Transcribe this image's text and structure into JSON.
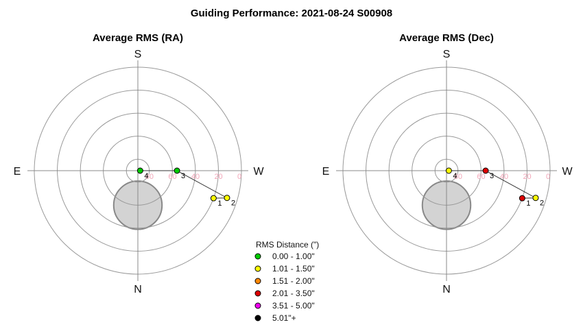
{
  "page": {
    "title": "Guiding Performance: 2021-08-24 S00908"
  },
  "legend": {
    "title": "RMS Distance (\")",
    "items": [
      {
        "label": "0.00 - 1.00\"",
        "color": "#00cc00"
      },
      {
        "label": "1.01 - 1.50\"",
        "color": "#ffff00"
      },
      {
        "label": "1.51 - 2.00\"",
        "color": "#ff8800"
      },
      {
        "label": "2.01 - 3.50\"",
        "color": "#dd0000"
      },
      {
        "label": "3.51 - 5.00\"",
        "color": "#ee00ee"
      },
      {
        "label": "5.01\"+",
        "color": "#000000"
      }
    ]
  },
  "chart_data": [
    {
      "type": "scatter",
      "subtype": "polar-sky",
      "title": "Average RMS (RA)",
      "cardinals": {
        "top": "S",
        "bottom": "N",
        "left": "E",
        "right": "W"
      },
      "altitude_rings": [
        80,
        60,
        40,
        20,
        0
      ],
      "ring_labels": [
        "80",
        "60",
        "40",
        "20",
        "0"
      ],
      "excluded_region": {
        "azimuth": 0,
        "altitude": 60,
        "radius_deg": 21
      },
      "points": [
        {
          "label": "1",
          "azimuth": 290,
          "altitude": 20,
          "color": "#ffff00"
        },
        {
          "label": "2",
          "azimuth": 287,
          "altitude": 9,
          "color": "#ffff00"
        },
        {
          "label": "3",
          "azimuth": 270,
          "altitude": 56,
          "color": "#00cc00"
        },
        {
          "label": "4",
          "azimuth": 270,
          "altitude": 88,
          "color": "#00cc00"
        }
      ]
    },
    {
      "type": "scatter",
      "subtype": "polar-sky",
      "title": "Average RMS (Dec)",
      "cardinals": {
        "top": "S",
        "bottom": "N",
        "left": "E",
        "right": "W"
      },
      "altitude_rings": [
        80,
        60,
        40,
        20,
        0
      ],
      "ring_labels": [
        "80",
        "60",
        "40",
        "20",
        "0"
      ],
      "excluded_region": {
        "azimuth": 0,
        "altitude": 60,
        "radius_deg": 21
      },
      "points": [
        {
          "label": "1",
          "azimuth": 290,
          "altitude": 20,
          "color": "#dd0000"
        },
        {
          "label": "2",
          "azimuth": 287,
          "altitude": 9,
          "color": "#ffff00"
        },
        {
          "label": "3",
          "azimuth": 270,
          "altitude": 56,
          "color": "#dd0000"
        },
        {
          "label": "4",
          "azimuth": 270,
          "altitude": 88,
          "color": "#ffff00"
        }
      ]
    }
  ]
}
